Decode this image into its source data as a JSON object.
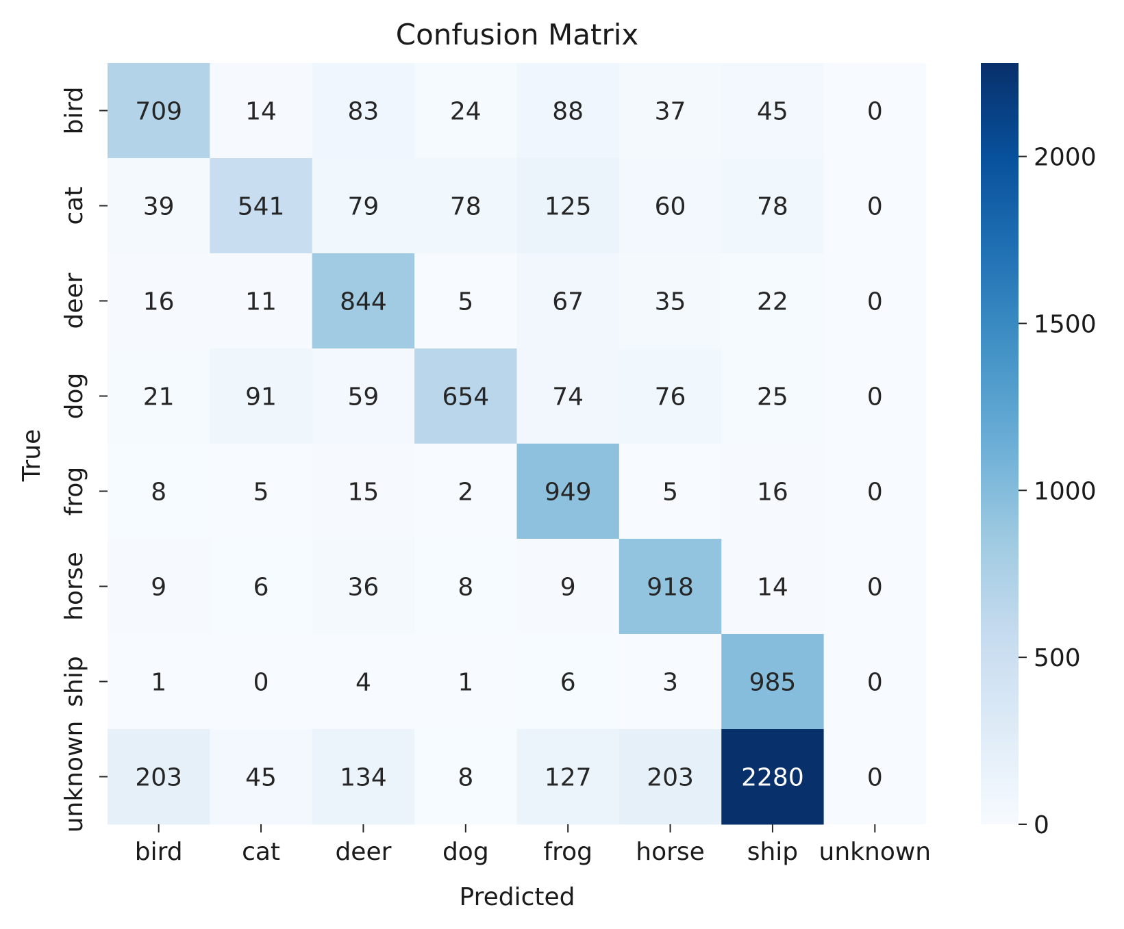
{
  "chart_data": {
    "type": "heatmap",
    "title": "Confusion Matrix",
    "xlabel": "Predicted",
    "ylabel": "True",
    "x_categories": [
      "bird",
      "cat",
      "deer",
      "dog",
      "frog",
      "horse",
      "ship",
      "unknown"
    ],
    "y_categories": [
      "bird",
      "cat",
      "deer",
      "dog",
      "frog",
      "horse",
      "ship",
      "unknown"
    ],
    "values": [
      [
        709,
        14,
        83,
        24,
        88,
        37,
        45,
        0
      ],
      [
        39,
        541,
        79,
        78,
        125,
        60,
        78,
        0
      ],
      [
        16,
        11,
        844,
        5,
        67,
        35,
        22,
        0
      ],
      [
        21,
        91,
        59,
        654,
        74,
        76,
        25,
        0
      ],
      [
        8,
        5,
        15,
        2,
        949,
        5,
        16,
        0
      ],
      [
        9,
        6,
        36,
        8,
        9,
        918,
        14,
        0
      ],
      [
        1,
        0,
        4,
        1,
        6,
        3,
        985,
        0
      ],
      [
        203,
        45,
        134,
        8,
        127,
        203,
        2280,
        0
      ]
    ],
    "colormap": "Blues",
    "color_low": "#f7fbff",
    "color_high": "#08306b",
    "vmin": 0,
    "vmax": 2280,
    "colorbar_ticks": [
      0,
      500,
      1000,
      1500,
      2000
    ],
    "annotation_dark_color": "#262626",
    "annotation_light_color": "#ffffff"
  }
}
